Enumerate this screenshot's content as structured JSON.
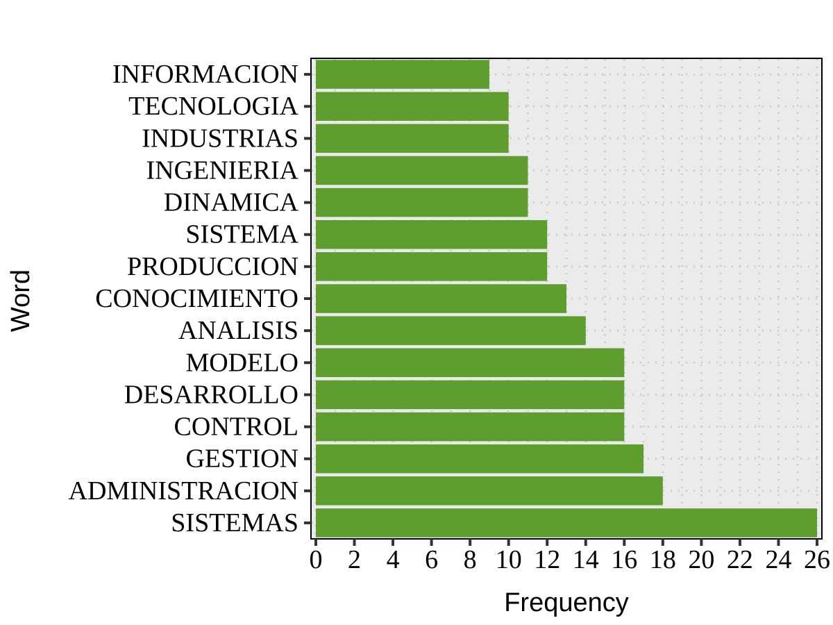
{
  "chart_data": {
    "type": "bar",
    "orientation": "horizontal",
    "categories": [
      "INFORMACION",
      "TECNOLOGIA",
      "INDUSTRIAS",
      "INGENIERIA",
      "DINAMICA",
      "SISTEMA",
      "PRODUCCION",
      "CONOCIMIENTO",
      "ANALISIS",
      "MODELO",
      "DESARROLLO",
      "CONTROL",
      "GESTION",
      "ADMINISTRACION",
      "SISTEMAS"
    ],
    "values": [
      9,
      10,
      10,
      11,
      11,
      12,
      12,
      13,
      14,
      16,
      16,
      16,
      17,
      18,
      26
    ],
    "xlabel": "Frequency",
    "ylabel": "Word",
    "xlim": [
      0,
      26
    ],
    "xticks": [
      0,
      2,
      4,
      6,
      8,
      10,
      12,
      14,
      16,
      18,
      20,
      22,
      24,
      26
    ],
    "grid": true,
    "legend": "none",
    "colors": {
      "bar": "#5e9e2e",
      "panel": "#ebebeb",
      "grid": "#cccccc"
    }
  }
}
